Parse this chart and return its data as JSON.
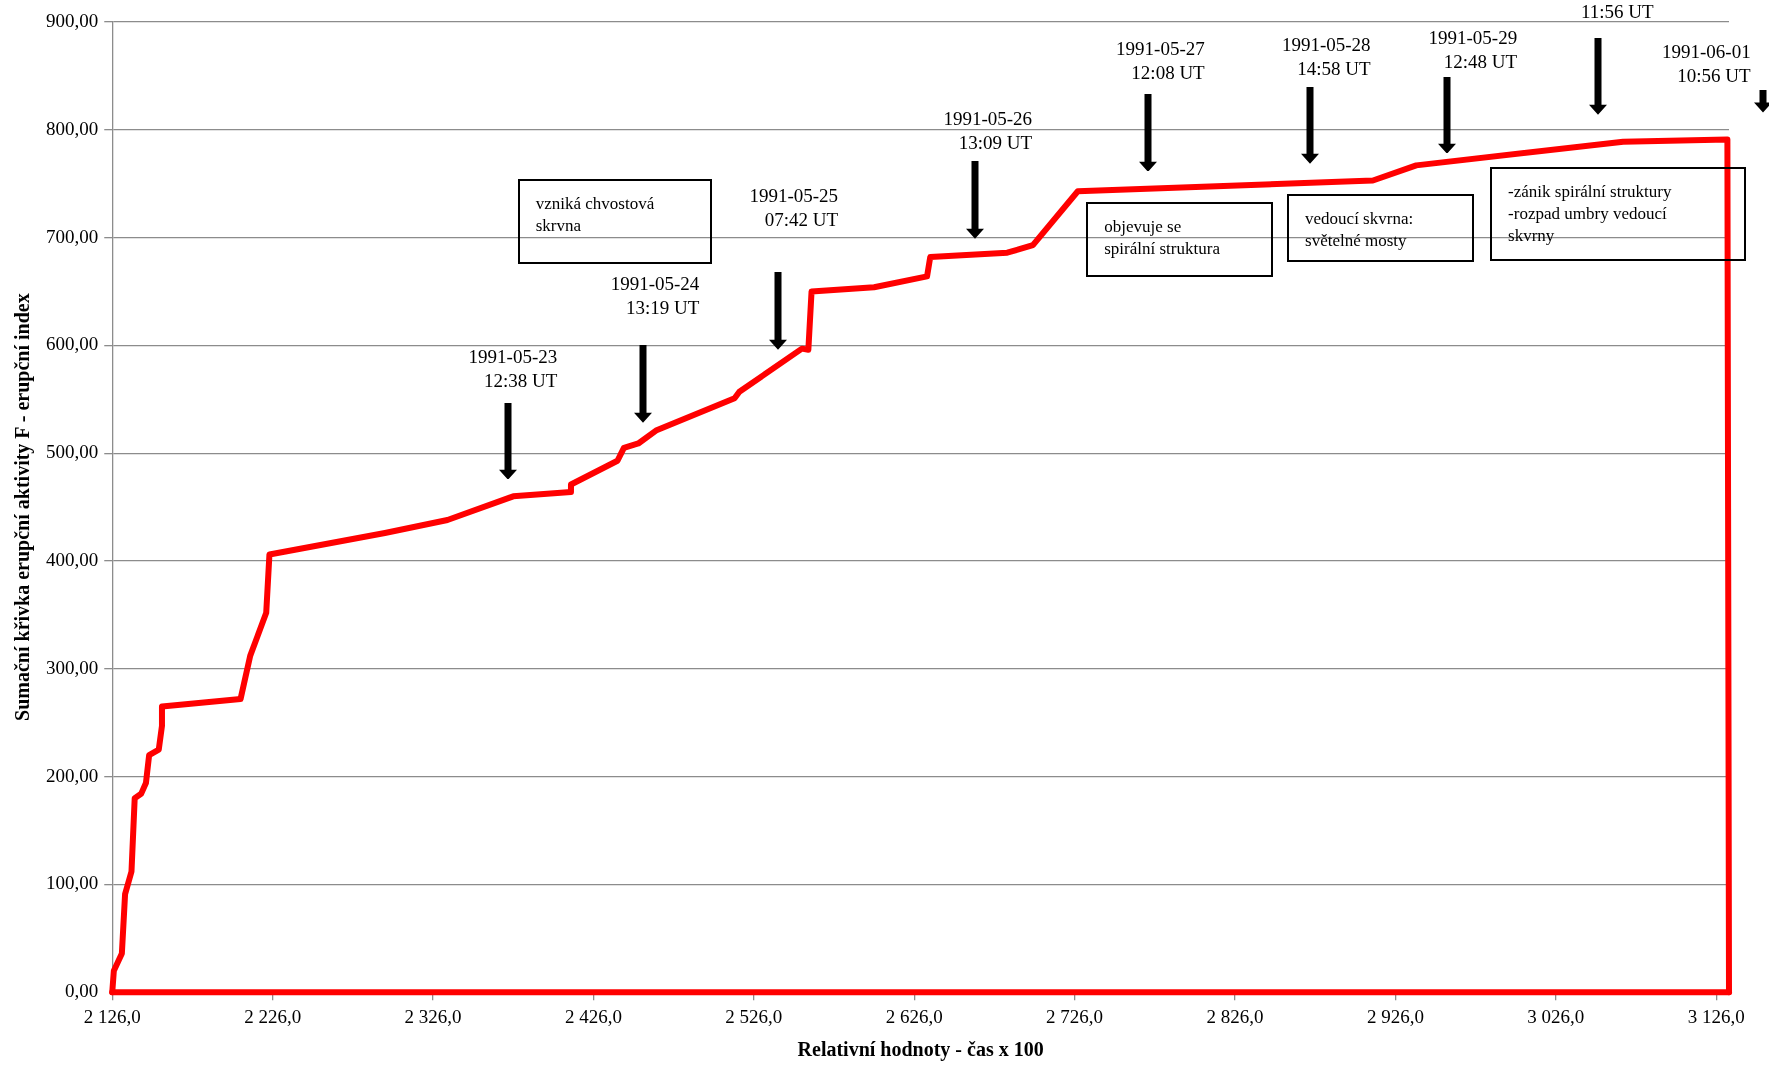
{
  "chart_data": {
    "type": "line",
    "xlabel": "Relativní hodnoty - čas x 100",
    "ylabel": "Sumační křivka erupční aktivity F - erupční index",
    "series": [
      {
        "color": "#ff0000",
        "x": [
          2126,
          2127,
          2132,
          2134,
          2138,
          2140,
          2144,
          2147,
          2149,
          2155,
          2157,
          2157,
          2206,
          2212,
          2222,
          2224,
          2296,
          2335,
          2376,
          2412,
          2412,
          2441,
          2445,
          2454,
          2465,
          2514,
          2517,
          2556,
          2560,
          2562,
          2601,
          2634,
          2636,
          2684,
          2700,
          2728,
          2912,
          2939,
          3068,
          3133,
          3134
        ],
        "values": [
          0,
          20,
          36,
          91,
          112,
          180,
          184,
          194,
          220,
          225,
          247,
          265,
          272,
          312,
          352,
          406,
          426,
          438,
          460,
          464,
          471,
          493,
          505,
          509,
          521,
          551,
          557,
          597,
          596,
          650,
          654,
          664,
          682,
          686,
          693,
          743,
          753,
          767,
          789,
          791,
          0
        ]
      },
      {
        "color": "#ff0000",
        "x": [
          2126,
          3134
        ],
        "values": [
          0,
          0
        ]
      }
    ],
    "xlim": [
      2126,
      3134
    ],
    "ylim": [
      0,
      900
    ],
    "xticks": [
      {
        "value": 2126,
        "label": "2 126,0"
      },
      {
        "value": 2226,
        "label": "2 226,0"
      },
      {
        "value": 2326,
        "label": "2 326,0"
      },
      {
        "value": 2426,
        "label": "2 426,0"
      },
      {
        "value": 2526,
        "label": "2 526,0"
      },
      {
        "value": 2626,
        "label": "2 626,0"
      },
      {
        "value": 2726,
        "label": "2 726,0"
      },
      {
        "value": 2826,
        "label": "2 826,0"
      },
      {
        "value": 2926,
        "label": "2 926,0"
      },
      {
        "value": 3026,
        "label": "3 026,0"
      },
      {
        "value": 3126,
        "label": "3 126,0"
      }
    ],
    "yticks": [
      {
        "value": 0,
        "label": "0,00"
      },
      {
        "value": 100,
        "label": "100,00"
      },
      {
        "value": 200,
        "label": "200,00"
      },
      {
        "value": 300,
        "label": "300,00"
      },
      {
        "value": 400,
        "label": "400,00"
      },
      {
        "value": 500,
        "label": "500,00"
      },
      {
        "value": 600,
        "label": "600,00"
      },
      {
        "value": 700,
        "label": "700,00"
      },
      {
        "value": 800,
        "label": "800,00"
      },
      {
        "value": 900,
        "label": "900,00"
      }
    ],
    "grid": "y",
    "marker": "none",
    "line_style": "solid",
    "annotations": [
      "1991-05-23\n12:38 UT",
      "1991-05-24\n13:19 UT",
      "1991-05-25\n07:42 UT",
      "1991-05-26\n13:09 UT",
      "1991-05-27\n12:08 UT",
      "1991-05-28\n14:58 UT",
      "1991-05-29\n12:48 UT",
      "11:56 UT",
      "1991-06-01\n10:56 UT",
      "vzniká chvostová\nskrvna",
      "objevuje se\nspirální struktura",
      "vedoucí skvrna:\nsvětelné mosty",
      "-zánik spirální struktury\n-rozpad umbry vedoucí\nskvrny"
    ]
  }
}
